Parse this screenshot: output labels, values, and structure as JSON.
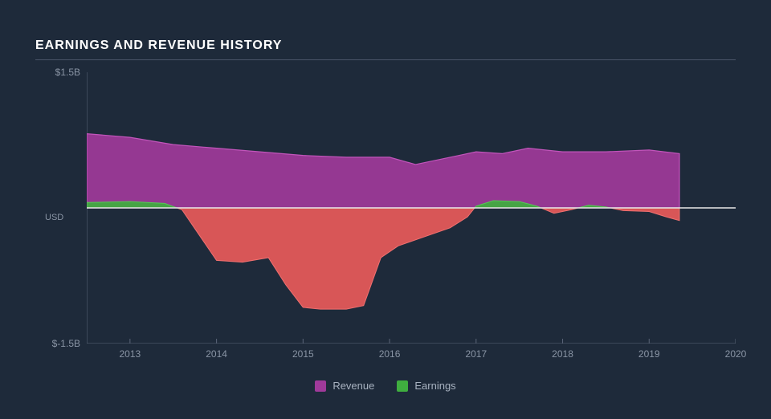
{
  "title": "EARNINGS AND REVENUE HISTORY",
  "chart": {
    "type": "area",
    "background_color": "#1e2a3a",
    "text_color": "#8a95a5",
    "zero_line_color": "#e8e8e8",
    "axis_line_color": "#5a6578",
    "y_axis": {
      "title": "USD",
      "min": -1.5,
      "max": 1.5,
      "ticks": [
        {
          "v": 1.5,
          "label": "$1.5B"
        },
        {
          "v": -1.5,
          "label": "$-1.5B"
        }
      ]
    },
    "x_axis": {
      "min": 2012.5,
      "max": 2020,
      "ticks": [
        2013,
        2014,
        2015,
        2016,
        2017,
        2018,
        2019,
        2020
      ]
    },
    "series": [
      {
        "name": "Revenue",
        "color": "#a03a9a",
        "stroke": "#c255bb",
        "opacity": 0.92,
        "data": [
          [
            2012.5,
            0.82
          ],
          [
            2013.0,
            0.78
          ],
          [
            2013.5,
            0.7
          ],
          [
            2014.0,
            0.66
          ],
          [
            2014.5,
            0.62
          ],
          [
            2015.0,
            0.58
          ],
          [
            2015.5,
            0.56
          ],
          [
            2016.0,
            0.56
          ],
          [
            2016.3,
            0.48
          ],
          [
            2016.8,
            0.58
          ],
          [
            2017.0,
            0.62
          ],
          [
            2017.3,
            0.6
          ],
          [
            2017.6,
            0.66
          ],
          [
            2018.0,
            0.62
          ],
          [
            2018.5,
            0.62
          ],
          [
            2019.0,
            0.64
          ],
          [
            2019.35,
            0.6
          ]
        ]
      },
      {
        "name": "Earnings",
        "color_pos": "#3fae3f",
        "color_neg": "#e85a5a",
        "stroke_pos": "#55c855",
        "stroke_neg": "#f07070",
        "opacity": 0.92,
        "data": [
          [
            2012.5,
            0.06
          ],
          [
            2013.0,
            0.07
          ],
          [
            2013.4,
            0.05
          ],
          [
            2013.6,
            -0.02
          ],
          [
            2013.8,
            -0.3
          ],
          [
            2014.0,
            -0.58
          ],
          [
            2014.3,
            -0.6
          ],
          [
            2014.6,
            -0.55
          ],
          [
            2014.8,
            -0.85
          ],
          [
            2015.0,
            -1.1
          ],
          [
            2015.2,
            -1.12
          ],
          [
            2015.5,
            -1.12
          ],
          [
            2015.7,
            -1.08
          ],
          [
            2015.9,
            -0.55
          ],
          [
            2016.1,
            -0.42
          ],
          [
            2016.4,
            -0.32
          ],
          [
            2016.7,
            -0.22
          ],
          [
            2016.9,
            -0.1
          ],
          [
            2017.0,
            0.02
          ],
          [
            2017.2,
            0.08
          ],
          [
            2017.5,
            0.07
          ],
          [
            2017.7,
            0.02
          ],
          [
            2017.9,
            -0.06
          ],
          [
            2018.1,
            -0.02
          ],
          [
            2018.3,
            0.03
          ],
          [
            2018.5,
            0.01
          ],
          [
            2018.7,
            -0.03
          ],
          [
            2019.0,
            -0.04
          ],
          [
            2019.2,
            -0.1
          ],
          [
            2019.35,
            -0.14
          ]
        ]
      }
    ],
    "legend": [
      {
        "label": "Revenue",
        "color": "#a03a9a"
      },
      {
        "label": "Earnings",
        "color": "#3fae3f"
      }
    ]
  }
}
